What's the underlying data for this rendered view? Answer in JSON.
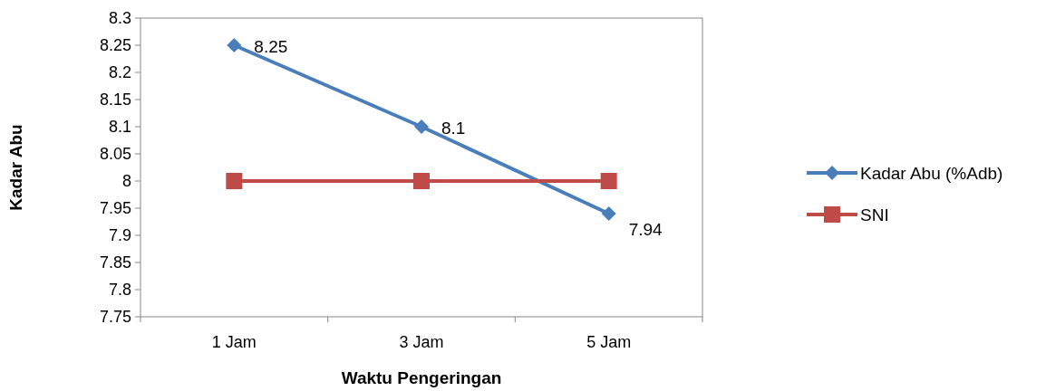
{
  "chart_data": {
    "type": "line",
    "xlabel": "Waktu Pengeringan",
    "ylabel": "Kadar Abu",
    "categories": [
      "1 Jam",
      "3 Jam",
      "5 Jam"
    ],
    "series": [
      {
        "name": "Kadar Abu (%Adb)",
        "color": "#4a7ebb",
        "values": [
          8.25,
          8.1,
          7.94
        ],
        "marker": "diamond",
        "value_labels": [
          "8.25",
          "8.1",
          "7.94"
        ]
      },
      {
        "name": "SNI",
        "color": "#be4b48",
        "values": [
          8,
          8,
          8
        ],
        "marker": "square"
      }
    ],
    "ylim": [
      7.75,
      8.3
    ],
    "yticks": [
      7.75,
      7.8,
      7.85,
      7.9,
      7.95,
      8,
      8.05,
      8.1,
      8.15,
      8.2,
      8.25,
      8.3
    ],
    "grid": false,
    "legend": "right",
    "line_style": "solid"
  }
}
